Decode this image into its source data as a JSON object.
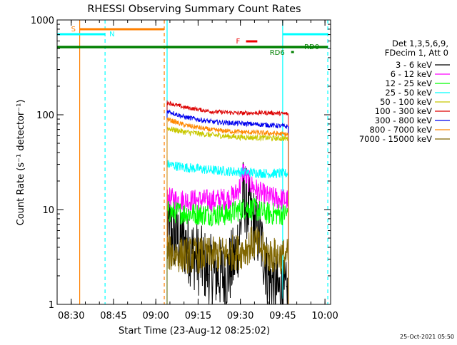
{
  "chart_data": {
    "type": "line",
    "title": "RHESSI Observing Summary Count Rates",
    "xlabel": "Start Time (23-Aug-12 08:25:02)",
    "ylabel": "Count Rate (s⁻¹ detector⁻¹)",
    "yscale": "log",
    "ylim": [
      1,
      1000
    ],
    "xlim": [
      "08:25",
      "10:02"
    ],
    "x_ticks": [
      "08:30",
      "08:45",
      "09:00",
      "09:15",
      "09:30",
      "09:45",
      "10:00"
    ],
    "y_ticks": [
      "1",
      "10",
      "100",
      "1000"
    ],
    "grid": false,
    "legend_position": "top-right",
    "legend_header": [
      "Det 1,3,5,6,9,",
      "FDecim 1, Att 0"
    ],
    "footer_timestamp": "25-Oct-2021 05:50",
    "data_start": "09:04",
    "data_end": "09:47",
    "series": [
      {
        "name": "3 - 6 keV",
        "color": "#000000",
        "x": [
          "09:04",
          "09:10",
          "09:15",
          "09:20",
          "09:25",
          "09:28",
          "09:30",
          "09:31",
          "09:32",
          "09:34",
          "09:37",
          "09:40",
          "09:44",
          "09:46",
          "09:47"
        ],
        "values": [
          6,
          4.5,
          3,
          2.2,
          2,
          3,
          6,
          15,
          12,
          8,
          5,
          2,
          1.3,
          1.2,
          1.1
        ]
      },
      {
        "name": "6 - 12 keV",
        "color": "#ff00ff",
        "x": [
          "09:04",
          "09:10",
          "09:15",
          "09:20",
          "09:25",
          "09:28",
          "09:30",
          "09:31",
          "09:32",
          "09:34",
          "09:37",
          "09:40",
          "09:44",
          "09:47"
        ],
        "values": [
          13,
          12.5,
          12.5,
          12.5,
          13,
          14,
          18,
          27,
          22,
          18,
          15,
          13.5,
          13,
          12.5
        ]
      },
      {
        "name": "12 - 25 keV",
        "color": "#00ff00",
        "x": [
          "09:04",
          "09:15",
          "09:25",
          "09:30",
          "09:32",
          "09:35",
          "09:40",
          "09:47"
        ],
        "values": [
          9.5,
          9,
          8.8,
          10,
          10.5,
          10,
          9,
          9
        ]
      },
      {
        "name": "25 - 50 keV",
        "color": "#00ffff",
        "x": [
          "09:04",
          "09:10",
          "09:20",
          "09:30",
          "09:40",
          "09:47"
        ],
        "values": [
          30,
          28,
          26,
          25,
          24,
          24
        ]
      },
      {
        "name": "50 - 100 keV",
        "color": "#c8c800",
        "x": [
          "09:04",
          "09:10",
          "09:20",
          "09:30",
          "09:40",
          "09:47"
        ],
        "values": [
          72,
          66,
          61,
          58,
          57,
          56
        ]
      },
      {
        "name": "100 - 300 keV",
        "color": "#dd0000",
        "x": [
          "09:04",
          "09:10",
          "09:20",
          "09:30",
          "09:40",
          "09:47"
        ],
        "values": [
          135,
          120,
          108,
          104,
          105,
          102
        ]
      },
      {
        "name": "300 - 800 keV",
        "color": "#0000ee",
        "x": [
          "09:04",
          "09:10",
          "09:20",
          "09:30",
          "09:40",
          "09:47"
        ],
        "values": [
          110,
          95,
          84,
          81,
          78,
          75
        ]
      },
      {
        "name": "800 - 7000 keV",
        "color": "#ff8800",
        "x": [
          "09:04",
          "09:10",
          "09:20",
          "09:30",
          "09:40",
          "09:47"
        ],
        "values": [
          90,
          78,
          69,
          66,
          64,
          62
        ]
      },
      {
        "name": "7000 - 15000 keV",
        "color": "#806600",
        "x": [
          "09:04",
          "09:10",
          "09:20",
          "09:30",
          "09:35",
          "09:40",
          "09:47"
        ],
        "values": [
          3.5,
          3.3,
          3.3,
          3.6,
          4.5,
          3.3,
          3.2
        ]
      }
    ],
    "flag_bars": [
      {
        "label": "S",
        "color": "#ff8000",
        "start": "08:33",
        "end": "09:03"
      },
      {
        "label": "N",
        "color": "#00ffff",
        "start": "08:25",
        "end": "08:42"
      },
      {
        "label": "N",
        "color": "#00ffff",
        "start": "09:45",
        "end": "10:01"
      },
      {
        "label": "F",
        "color": "#ee0000",
        "start": "09:32",
        "end": "09:36"
      },
      {
        "label": "RD0",
        "color": "#008000",
        "start": "08:25",
        "end": "10:01"
      },
      {
        "label": "RD6",
        "color": "#008000",
        "start": "09:48",
        "end": "09:49"
      }
    ],
    "vertical_markers": [
      {
        "time": "08:33",
        "color": "#ff8000",
        "style": "solid"
      },
      {
        "time": "08:42",
        "color": "#00ffff",
        "style": "dashed"
      },
      {
        "time": "09:03",
        "color": "#ff8000",
        "style": "dashed"
      },
      {
        "time": "09:04",
        "color": "#00ffff",
        "style": "solid"
      },
      {
        "time": "09:45",
        "color": "#00ffff",
        "style": "solid"
      },
      {
        "time": "10:01",
        "color": "#00ffff",
        "style": "dashed"
      }
    ]
  }
}
